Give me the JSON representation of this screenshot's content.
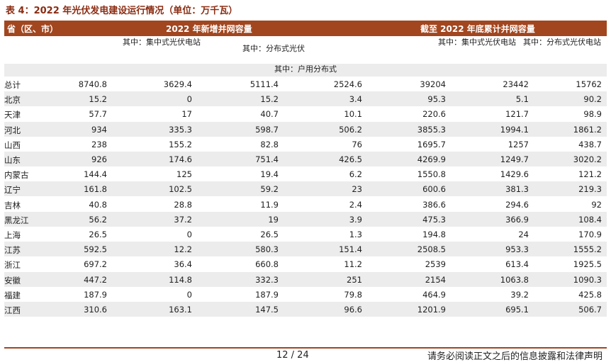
{
  "caption": "表 4：2022 年光伏发电建设运行情况（单位：万千瓦）",
  "header": {
    "region": "省（区、市）",
    "group_new": "2022 年新增并网容量",
    "group_total": "截至 2022 年底累计并网容量"
  },
  "subheaders": {
    "new_centralized": "其中：集中式光伏电站",
    "new_distributed": "其中：分布式光伏",
    "new_household": "其中：户用分布式",
    "total_centralized": "其中：集中式光伏电站",
    "total_distributed": "其中：分布式光伏电站"
  },
  "rows": [
    {
      "name": "总计",
      "v": [
        "8740.8",
        "3629.4",
        "5111.4",
        "2524.6",
        "39204",
        "23442",
        "15762"
      ]
    },
    {
      "name": "北京",
      "v": [
        "15.2",
        "0",
        "15.2",
        "3.4",
        "95.3",
        "5.1",
        "90.2"
      ]
    },
    {
      "name": "天津",
      "v": [
        "57.7",
        "17",
        "40.7",
        "10.1",
        "220.6",
        "121.7",
        "98.9"
      ]
    },
    {
      "name": "河北",
      "v": [
        "934",
        "335.3",
        "598.7",
        "506.2",
        "3855.3",
        "1994.1",
        "1861.2"
      ]
    },
    {
      "name": "山西",
      "v": [
        "238",
        "155.2",
        "82.8",
        "76",
        "1695.7",
        "1257",
        "438.7"
      ]
    },
    {
      "name": "山东",
      "v": [
        "926",
        "174.6",
        "751.4",
        "426.5",
        "4269.9",
        "1249.7",
        "3020.2"
      ]
    },
    {
      "name": "内蒙古",
      "v": [
        "144.4",
        "125",
        "19.4",
        "6.2",
        "1550.8",
        "1429.6",
        "121.2"
      ]
    },
    {
      "name": "辽宁",
      "v": [
        "161.8",
        "102.5",
        "59.2",
        "23",
        "600.6",
        "381.3",
        "219.3"
      ]
    },
    {
      "name": "吉林",
      "v": [
        "40.8",
        "28.8",
        "11.9",
        "2.4",
        "386.6",
        "294.6",
        "92"
      ]
    },
    {
      "name": "黑龙江",
      "v": [
        "56.2",
        "37.2",
        "19",
        "3.9",
        "475.3",
        "366.9",
        "108.4"
      ]
    },
    {
      "name": "上海",
      "v": [
        "26.5",
        "0",
        "26.5",
        "1.3",
        "194.8",
        "24",
        "170.9"
      ]
    },
    {
      "name": "江苏",
      "v": [
        "592.5",
        "12.2",
        "580.3",
        "151.4",
        "2508.5",
        "953.3",
        "1555.2"
      ]
    },
    {
      "name": "浙江",
      "v": [
        "697.2",
        "36.4",
        "660.8",
        "11.2",
        "2539",
        "613.4",
        "1925.5"
      ]
    },
    {
      "name": "安徽",
      "v": [
        "447.2",
        "114.8",
        "332.3",
        "251",
        "2154",
        "1063.8",
        "1090.3"
      ]
    },
    {
      "name": "福建",
      "v": [
        "187.9",
        "0",
        "187.9",
        "79.8",
        "464.9",
        "39.2",
        "425.8"
      ]
    },
    {
      "name": "江西",
      "v": [
        "310.6",
        "163.1",
        "147.5",
        "96.6",
        "1201.9",
        "695.1",
        "506.7"
      ]
    }
  ],
  "footer": {
    "page": "12 / 24",
    "disclaimer": "请务必阅读正文之后的信息披露和法律声明"
  }
}
